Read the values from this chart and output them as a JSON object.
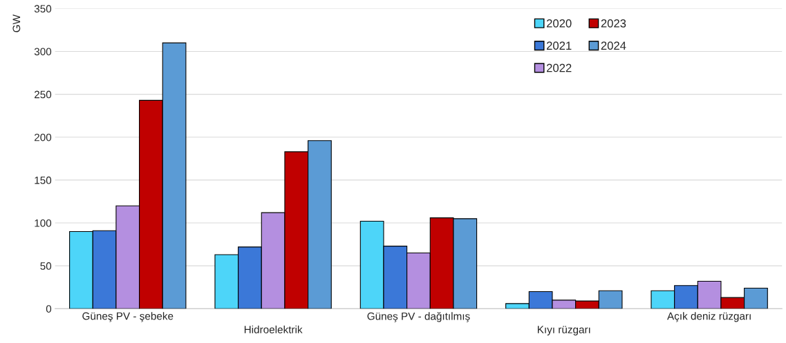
{
  "chart_data": {
    "type": "bar",
    "ylabel": "GW",
    "categories": [
      "Güneş PV - şebeke",
      "Hidroelektrik",
      "Güneş PV - dağıtılmış",
      "Kıyı rüzgarı",
      "Açık deniz rüzgarı"
    ],
    "series": [
      {
        "name": "2020",
        "color": "#4dd5f9",
        "values": [
          90,
          63,
          102,
          6,
          21
        ]
      },
      {
        "name": "2021",
        "color": "#3b78d8",
        "values": [
          91,
          72,
          73,
          20,
          27
        ]
      },
      {
        "name": "2022",
        "color": "#b48fe0",
        "values": [
          120,
          112,
          65,
          10,
          32
        ]
      },
      {
        "name": "2023",
        "color": "#c00000",
        "values": [
          243,
          183,
          106,
          9,
          13
        ]
      },
      {
        "name": "2024",
        "color": "#5b9bd5",
        "values": [
          310,
          196,
          105,
          21,
          24
        ]
      }
    ],
    "ylim": [
      0,
      350
    ],
    "yticks": [
      0,
      50,
      100,
      150,
      200,
      250,
      300,
      350
    ],
    "grid": "y",
    "legend": "top right"
  }
}
